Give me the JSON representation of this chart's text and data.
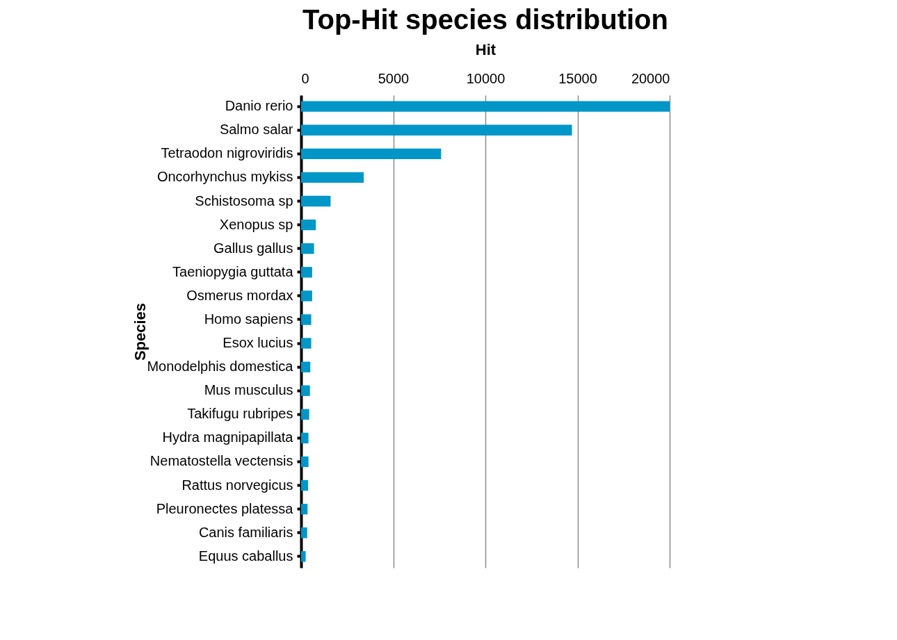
{
  "chart_data": {
    "type": "bar",
    "orientation": "horizontal",
    "title": "Top-Hit species distribution",
    "xlabel": "Hit",
    "ylabel": "Species",
    "categories": [
      "Danio rerio",
      "Salmo salar",
      "Tetraodon nigroviridis",
      "Oncorhynchus mykiss",
      "Schistosoma sp",
      "Xenopus sp",
      "Gallus gallus",
      "Taeniopygia guttata",
      "Osmerus mordax",
      "Homo sapiens",
      "Esox lucius",
      "Monodelphis domestica",
      "Mus musculus",
      "Takifugu rubripes",
      "Hydra magnipapillata",
      "Nematostella vectensis",
      "Rattus norvegicus",
      "Pleuronectes platessa",
      "Canis familiaris",
      "Equus caballus"
    ],
    "values": [
      20000,
      14700,
      7600,
      3400,
      1600,
      800,
      700,
      600,
      600,
      550,
      550,
      500,
      480,
      440,
      400,
      400,
      380,
      350,
      330,
      250
    ],
    "color": "#0096c8",
    "xlim": [
      0,
      20000
    ],
    "xticks": [
      0,
      5000,
      10000,
      15000,
      20000
    ],
    "grid": "x"
  }
}
